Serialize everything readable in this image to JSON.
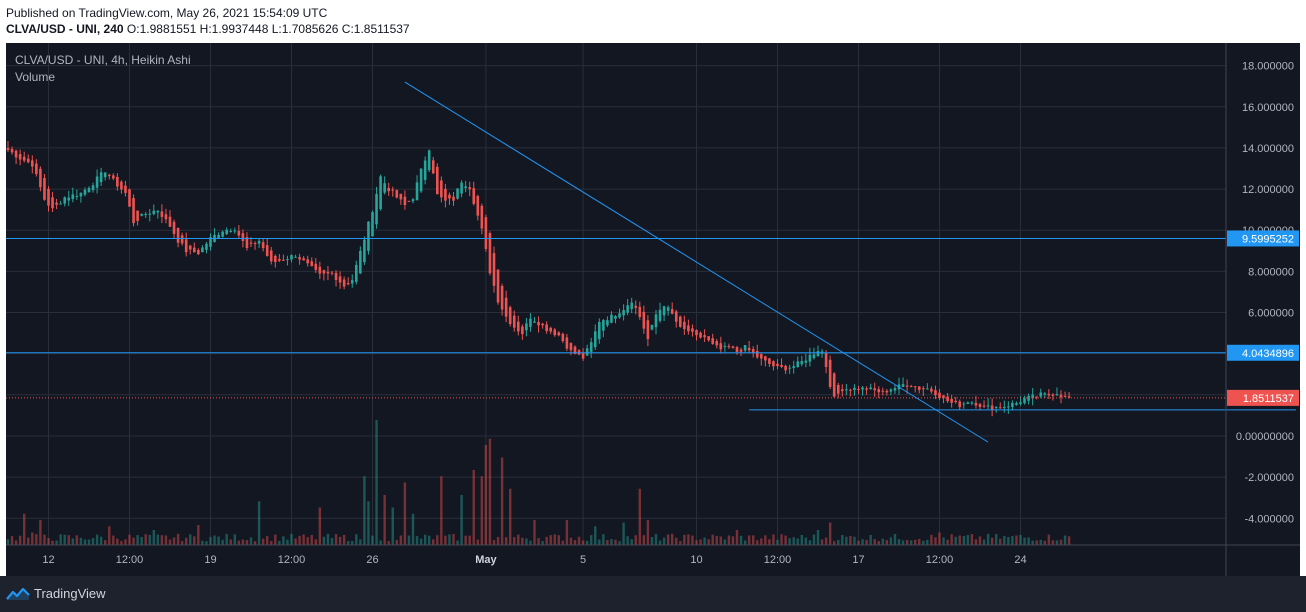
{
  "header": {
    "published": "Published on TradingView.com, May 26, 2021 15:54:09 UTC",
    "symbol": "CLVA/USD - UNI, 240",
    "ohlc": "O:1.9881551 H:1.9937448 L:1.7085626 C:1.8511537"
  },
  "legend": {
    "title": "CLVA/USD - UNI, 4h, Heikin Ashi",
    "volume": "Volume"
  },
  "footer": {
    "brand": "TradingView"
  },
  "colors": {
    "up": "#26a69a",
    "down": "#ef5350",
    "line": "#2196f3",
    "background": "#131722",
    "grid": "#2a2e39"
  },
  "chart_data": {
    "type": "candlestick",
    "title": "CLVA/USD - UNI, 4h, Heikin Ashi",
    "y_axis": {
      "ticks": [
        "18.000000",
        "16.000000",
        "14.000000",
        "12.000000",
        "10.000000",
        "8.000000",
        "6.000000",
        "4.000000",
        "2.000000",
        "0.00000000",
        "-2.000000",
        "-4.000000"
      ],
      "ylim": [
        -5.3,
        19.1
      ]
    },
    "x_axis": {
      "ticks": [
        "12",
        "12:00",
        "19",
        "12:00",
        "26",
        "May",
        "5",
        "10",
        "12:00",
        "17",
        "12:00",
        "24"
      ],
      "bold_ticks": [
        "May"
      ]
    },
    "price_labels": [
      {
        "value": "9.5995252",
        "price": 9.5995252,
        "color": "#2196f3"
      },
      {
        "value": "4.0434896",
        "price": 4.0434896,
        "color": "#2196f3"
      },
      {
        "value": "1.8511537",
        "price": 1.8511537,
        "color": "#ef5350"
      }
    ],
    "horizontal_lines": [
      9.5995252,
      4.0434896
    ],
    "support_line": {
      "price": 1.27,
      "from_index": 183,
      "to_index": 318
    },
    "trendline": {
      "from": {
        "index": 98,
        "price": 17.2
      },
      "to": {
        "index": 242,
        "price": -0.3
      }
    },
    "last_price_line": 1.8511537,
    "anchors": [
      [
        0,
        13.9
      ],
      [
        3,
        13.5
      ],
      [
        6,
        13.2
      ],
      [
        9,
        11.5
      ],
      [
        11,
        11.0
      ],
      [
        14,
        11.6
      ],
      [
        18,
        11.8
      ],
      [
        21,
        12.3
      ],
      [
        24,
        12.9
      ],
      [
        26,
        12.4
      ],
      [
        29,
        11.8
      ],
      [
        31,
        10.4
      ],
      [
        34,
        10.8
      ],
      [
        37,
        11.0
      ],
      [
        40,
        10.2
      ],
      [
        42,
        9.5
      ],
      [
        44,
        9.0
      ],
      [
        47,
        8.9
      ],
      [
        50,
        9.6
      ],
      [
        53,
        10.0
      ],
      [
        56,
        10.1
      ],
      [
        59,
        9.1
      ],
      [
        62,
        9.5
      ],
      [
        65,
        8.4
      ],
      [
        68,
        8.6
      ],
      [
        71,
        8.8
      ],
      [
        74,
        8.3
      ],
      [
        77,
        7.8
      ],
      [
        80,
        7.9
      ],
      [
        83,
        7.3
      ],
      [
        85,
        7.6
      ],
      [
        88,
        9.6
      ],
      [
        90,
        11.0
      ],
      [
        92,
        12.6
      ],
      [
        94,
        12.0
      ],
      [
        96,
        11.6
      ],
      [
        98,
        11.2
      ],
      [
        100,
        11.6
      ],
      [
        102,
        12.9
      ],
      [
        104,
        14.0
      ],
      [
        106,
        11.7
      ],
      [
        108,
        11.4
      ],
      [
        110,
        11.5
      ],
      [
        112,
        12.4
      ],
      [
        114,
        12.1
      ],
      [
        115,
        11.4
      ],
      [
        117,
        10.0
      ],
      [
        119,
        8.0
      ],
      [
        121,
        6.6
      ],
      [
        123,
        5.8
      ],
      [
        125,
        5.3
      ],
      [
        127,
        5.0
      ],
      [
        129,
        5.8
      ],
      [
        131,
        5.5
      ],
      [
        133,
        5.2
      ],
      [
        136,
        4.9
      ],
      [
        139,
        4.1
      ],
      [
        142,
        3.8
      ],
      [
        144,
        4.5
      ],
      [
        146,
        5.6
      ],
      [
        149,
        5.8
      ],
      [
        152,
        6.2
      ],
      [
        154,
        6.6
      ],
      [
        156,
        5.8
      ],
      [
        158,
        4.7
      ],
      [
        160,
        5.9
      ],
      [
        162,
        6.4
      ],
      [
        164,
        5.9
      ],
      [
        166,
        5.2
      ],
      [
        168,
        5.1
      ],
      [
        170,
        4.8
      ],
      [
        172,
        4.8
      ],
      [
        174,
        4.4
      ],
      [
        176,
        4.2
      ],
      [
        178,
        4.3
      ],
      [
        180,
        4.1
      ],
      [
        182,
        4.3
      ],
      [
        184,
        4.0
      ],
      [
        186,
        3.7
      ],
      [
        188,
        3.5
      ],
      [
        190,
        3.3
      ],
      [
        192,
        3.3
      ],
      [
        194,
        3.4
      ],
      [
        196,
        3.6
      ],
      [
        198,
        3.9
      ],
      [
        200,
        4.2
      ],
      [
        201,
        4.1
      ],
      [
        202,
        3.4
      ],
      [
        203,
        2.5
      ],
      [
        204,
        1.8
      ],
      [
        206,
        2.3
      ],
      [
        208,
        2.3
      ],
      [
        210,
        2.3
      ],
      [
        212,
        2.3
      ],
      [
        214,
        2.2
      ],
      [
        216,
        2.1
      ],
      [
        218,
        2.3
      ],
      [
        220,
        2.4
      ],
      [
        221,
        2.5
      ],
      [
        223,
        2.5
      ],
      [
        225,
        2.3
      ],
      [
        227,
        2.3
      ],
      [
        229,
        2.1
      ],
      [
        231,
        1.8
      ],
      [
        233,
        1.6
      ],
      [
        235,
        1.5
      ],
      [
        237,
        1.7
      ],
      [
        239,
        1.6
      ],
      [
        241,
        1.4
      ],
      [
        243,
        1.4
      ],
      [
        245,
        1.4
      ],
      [
        247,
        1.5
      ],
      [
        249,
        1.6
      ],
      [
        251,
        1.8
      ],
      [
        253,
        1.9
      ],
      [
        255,
        2.0
      ],
      [
        257,
        2.0
      ],
      [
        259,
        2.1
      ],
      [
        261,
        1.85
      ],
      [
        262,
        1.85
      ]
    ],
    "volume_spikes": [
      [
        4,
        0.25
      ],
      [
        6,
        0.1
      ],
      [
        8,
        0.2
      ],
      [
        25,
        0.15
      ],
      [
        36,
        0.12
      ],
      [
        47,
        0.16
      ],
      [
        62,
        0.35
      ],
      [
        77,
        0.3
      ],
      [
        88,
        0.55
      ],
      [
        89,
        0.35
      ],
      [
        91,
        1.0
      ],
      [
        93,
        0.4
      ],
      [
        95,
        0.3
      ],
      [
        98,
        0.5
      ],
      [
        100,
        0.25
      ],
      [
        107,
        0.55
      ],
      [
        112,
        0.4
      ],
      [
        115,
        0.6
      ],
      [
        117,
        0.55
      ],
      [
        118,
        0.8
      ],
      [
        119,
        0.85
      ],
      [
        122,
        0.7
      ],
      [
        124,
        0.45
      ],
      [
        130,
        0.2
      ],
      [
        138,
        0.2
      ],
      [
        145,
        0.15
      ],
      [
        152,
        0.18
      ],
      [
        156,
        0.45
      ],
      [
        158,
        0.2
      ],
      [
        180,
        0.12
      ],
      [
        200,
        0.12
      ],
      [
        203,
        0.18
      ],
      [
        230,
        0.1
      ],
      [
        250,
        0.08
      ]
    ]
  }
}
